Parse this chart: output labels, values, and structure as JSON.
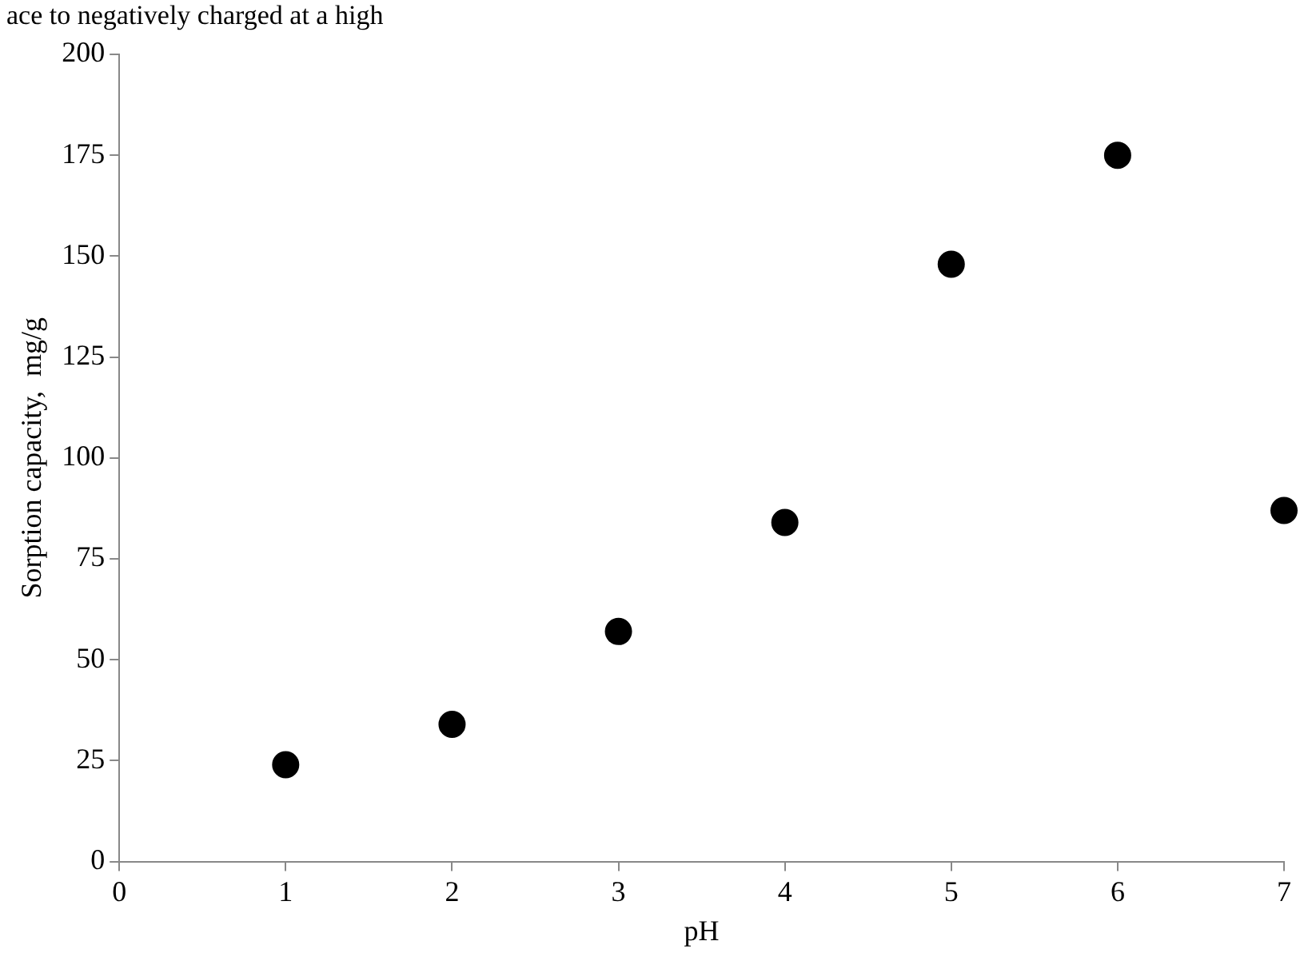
{
  "chart_data": {
    "type": "scatter",
    "annotations": [
      "ace to negatively charged at a high"
    ],
    "xlabel": "pH",
    "ylabel": "Sorption capacity,  mg/g",
    "x": [
      1,
      2,
      3,
      4,
      5,
      6,
      7
    ],
    "series": [
      {
        "color": "#000000",
        "values": [
          24,
          34,
          57,
          84,
          148,
          175,
          87
        ]
      }
    ],
    "xlim": [
      0,
      7
    ],
    "xticks": [
      0,
      1,
      2,
      3,
      4,
      5,
      6,
      7
    ],
    "ylim": [
      0,
      200
    ],
    "yticks": [
      0,
      25,
      50,
      75,
      100,
      125,
      150,
      175,
      200
    ],
    "grid": false,
    "legend": false,
    "marker": "circle"
  }
}
